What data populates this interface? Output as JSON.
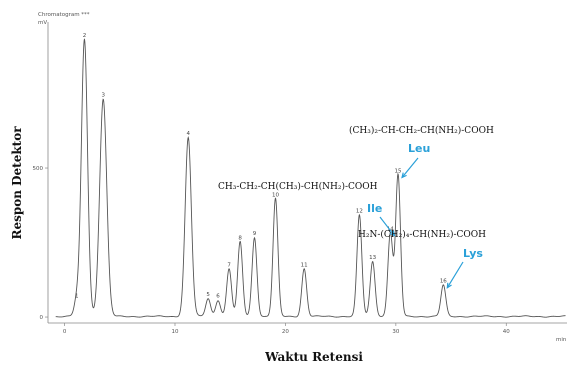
{
  "chart_data": {
    "type": "line",
    "title": "Chromatogram ***",
    "unit_label": "mV",
    "xlabel": "Waktu Retensi",
    "ylabel": "Respon Detektor",
    "x_unit": "min",
    "xlim": [
      -1.5,
      45.5
    ],
    "ylim": [
      -20,
      990
    ],
    "xticks": [
      0,
      10,
      20,
      30,
      40
    ],
    "yticks": [
      0,
      500
    ],
    "peaks": [
      {
        "label": "1",
        "rt": 1.1,
        "height": 55
      },
      {
        "label": "2",
        "rt": 1.8,
        "height": 930
      },
      {
        "label": "3",
        "rt": 3.5,
        "height": 730
      },
      {
        "label": "4",
        "rt": 11.2,
        "height": 600
      },
      {
        "label": "5",
        "rt": 13.0,
        "height": 60
      },
      {
        "label": "6",
        "rt": 13.9,
        "height": 55
      },
      {
        "label": "7",
        "rt": 14.9,
        "height": 160
      },
      {
        "label": "8",
        "rt": 15.9,
        "height": 250
      },
      {
        "label": "9",
        "rt": 17.2,
        "height": 265
      },
      {
        "label": "10",
        "rt": 19.1,
        "height": 395
      },
      {
        "label": "11",
        "rt": 21.7,
        "height": 160
      },
      {
        "label": "12",
        "rt": 26.7,
        "height": 340
      },
      {
        "label": "13",
        "rt": 27.9,
        "height": 185
      },
      {
        "label": "14",
        "rt": 29.5,
        "height": 280
      },
      {
        "label": "15",
        "rt": 30.2,
        "height": 475
      },
      {
        "label": "16",
        "rt": 34.3,
        "height": 105
      }
    ],
    "annotations": [
      {
        "peak": "15",
        "name": "Leu",
        "formula": "(CH₃)₂-CH-CH₂-CH(NH₂)-COOH"
      },
      {
        "peak": "14",
        "name": "Ile",
        "formula": "CH₃-CH₂-CH(CH₃)-CH(NH₂)-COOH"
      },
      {
        "peak": "16",
        "name": "Lys",
        "formula": "H₂N-(CH₂)₄-CH(NH₂)-COOH"
      }
    ],
    "colors": {
      "trace": "#555555",
      "annotation": "#2aa0d8",
      "axis": "#666666"
    }
  }
}
